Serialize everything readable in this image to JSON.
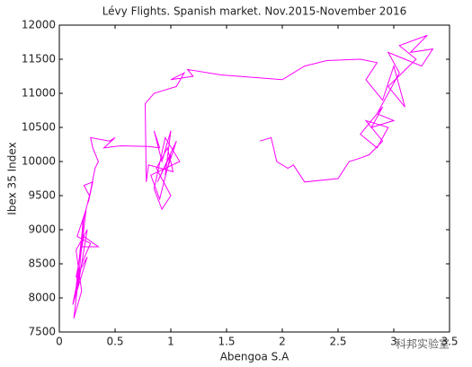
{
  "chart_data": {
    "type": "line",
    "title": "Lévy Flights. Spanish market. Nov.2015-November 2016",
    "x_label": "Abengoa S.A",
    "y_label": "Ibex 35 Index",
    "annotation": "科邦实验室",
    "color": "#ff00ff",
    "xlim": [
      0,
      3.5
    ],
    "xticks": [
      0,
      0.5,
      1,
      1.5,
      2,
      2.5,
      3,
      3.5
    ],
    "ylim": [
      7500,
      12000
    ],
    "yticks": [
      7500,
      8000,
      8500,
      9000,
      9500,
      10000,
      10500,
      11000,
      11500,
      12000
    ],
    "grid": false,
    "x": [
      0.2,
      0.35,
      0.22,
      0.15,
      0.25,
      0.12,
      0.18,
      0.13,
      0.2,
      0.15,
      0.25,
      0.17,
      0.22,
      0.14,
      0.2,
      0.28,
      0.16,
      0.24,
      0.19,
      0.21,
      0.27,
      0.22,
      0.3,
      0.26,
      0.32,
      0.35,
      0.3,
      0.28,
      0.45,
      0.5,
      0.4,
      0.55,
      0.8,
      0.9,
      0.85,
      0.92,
      1.0,
      0.95,
      1.05,
      0.88,
      1.0,
      0.9,
      0.82,
      1.08,
      0.95,
      0.85,
      0.92,
      1.0,
      0.87,
      0.97,
      1.02,
      0.8,
      0.78,
      0.77,
      0.85,
      0.95,
      1.05,
      1.12,
      1.0,
      1.2,
      1.15,
      1.45,
      2.0,
      2.1,
      2.2,
      2.4,
      2.7,
      2.85,
      2.75,
      2.9,
      3.0,
      3.1,
      2.95,
      3.2,
      3.05,
      3.3,
      3.15,
      3.35,
      3.25,
      3.1,
      2.95,
      3.05,
      2.85,
      3.0,
      2.8,
      2.9,
      2.7,
      2.85,
      2.95,
      2.75,
      2.9,
      2.78,
      2.7,
      2.6,
      2.5,
      2.2,
      2.1,
      2.05,
      1.95,
      1.9,
      1.8
    ],
    "values": [
      8750,
      8750,
      8900,
      8300,
      8600,
      7900,
      8400,
      7700,
      8100,
      8700,
      9000,
      8200,
      9200,
      8000,
      8500,
      8800,
      8900,
      9300,
      8600,
      9100,
      9500,
      9650,
      9700,
      9400,
      9900,
      10000,
      10200,
      10350,
      10300,
      10350,
      10200,
      10230,
      10220,
      10200,
      10450,
      10000,
      10450,
      9800,
      10300,
      9700,
      10100,
      9450,
      9800,
      10000,
      10350,
      9600,
      9300,
      9500,
      9900,
      10200,
      9850,
      9950,
      9700,
      10850,
      11000,
      11050,
      11100,
      11300,
      11200,
      11250,
      11350,
      11270,
      11200,
      11300,
      11400,
      11480,
      11500,
      11450,
      11200,
      10900,
      11400,
      10800,
      11100,
      11500,
      11700,
      11850,
      11600,
      11650,
      11400,
      11500,
      11600,
      11300,
      10700,
      10600,
      10500,
      10800,
      10400,
      10200,
      10500,
      10600,
      10300,
      10100,
      10050,
      10000,
      9750,
      9700,
      9950,
      9900,
      10000,
      10350,
      10300
    ]
  }
}
